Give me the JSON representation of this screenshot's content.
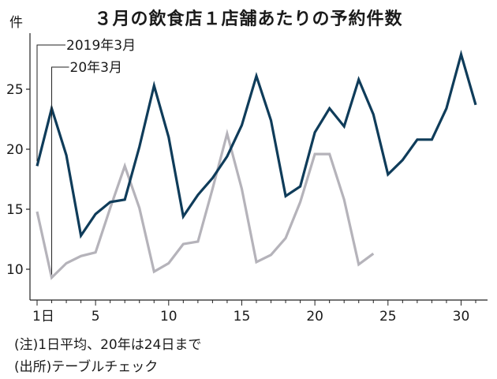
{
  "chart_data": {
    "type": "line",
    "title": "３月の飲食店１店舗あたりの予約件数",
    "ylabel": "件",
    "xlabel": "",
    "ylim": [
      8,
      30
    ],
    "xlim": [
      1,
      31
    ],
    "y_ticks": [
      10,
      15,
      20,
      25
    ],
    "x_ticks": [
      1,
      5,
      10,
      15,
      20,
      25,
      30
    ],
    "x_tick_labels": [
      "1日",
      "5",
      "10",
      "15",
      "20",
      "25",
      "30"
    ],
    "grid": false,
    "legend": "callouts",
    "series": [
      {
        "name": "2019年3月",
        "color": "#0f3c5a",
        "x": [
          1,
          2,
          3,
          4,
          5,
          6,
          7,
          8,
          9,
          10,
          11,
          12,
          13,
          14,
          15,
          16,
          17,
          18,
          19,
          20,
          21,
          22,
          23,
          24,
          25,
          26,
          27,
          28,
          29,
          30,
          31
        ],
        "values": [
          18.6,
          23.4,
          19.5,
          12.8,
          14.6,
          15.6,
          15.8,
          20.2,
          25.3,
          21.0,
          14.4,
          16.2,
          17.6,
          19.4,
          22.0,
          26.1,
          22.4,
          16.1,
          16.9,
          21.4,
          23.4,
          21.9,
          25.8,
          22.9,
          17.9,
          19.1,
          20.8,
          20.8,
          23.4,
          27.9,
          23.7
        ]
      },
      {
        "name": "20年3月",
        "color": "#b5b3ba",
        "x": [
          1,
          2,
          3,
          4,
          5,
          6,
          7,
          8,
          9,
          10,
          11,
          12,
          13,
          14,
          15,
          16,
          17,
          18,
          19,
          20,
          21,
          22,
          23,
          24
        ],
        "values": [
          14.8,
          9.3,
          10.5,
          11.1,
          11.4,
          15.1,
          18.6,
          15.1,
          9.8,
          10.5,
          12.1,
          12.3,
          16.7,
          21.3,
          16.7,
          10.6,
          11.2,
          12.6,
          15.6,
          19.6,
          19.6,
          15.8,
          10.4,
          11.3
        ]
      }
    ]
  },
  "notes": [
    "(注)1日平均、20年は24日まで",
    "(出所)テーブルチェック"
  ]
}
